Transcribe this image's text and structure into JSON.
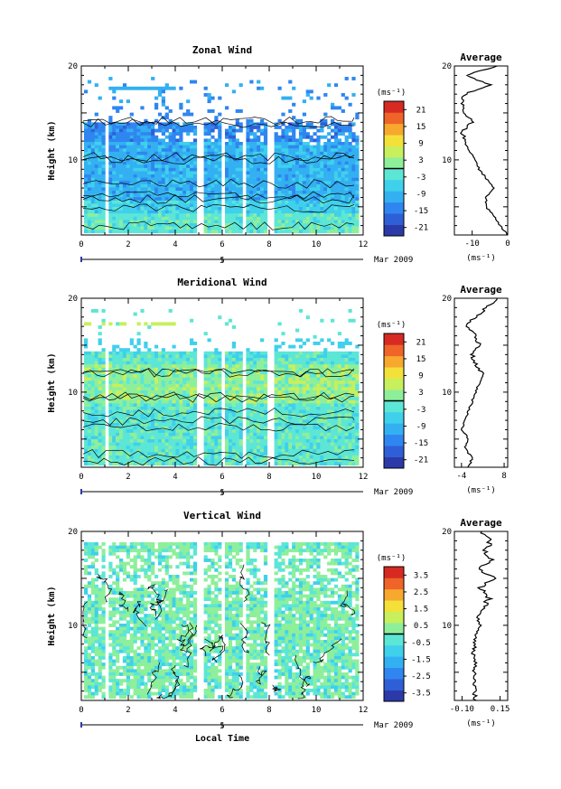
{
  "figure": {
    "xlabel": "Local Time",
    "date_label": "Mar 2009",
    "colormap": [
      "#2b3aa8",
      "#2f5fd6",
      "#2f86f0",
      "#33b0f2",
      "#3fd0ec",
      "#5ce6d6",
      "#8eef9a",
      "#c8ef5c",
      "#f3e13a",
      "#f7a82e",
      "#ef6428",
      "#d62a22"
    ]
  },
  "chart_data": [
    {
      "type": "heatmap",
      "title": "Zonal Wind",
      "xlabel": "",
      "ylabel": "Height (km)",
      "xlim": [
        0,
        12
      ],
      "ylim": [
        2,
        20
      ],
      "x_ticks": [
        "0",
        "2",
        "4",
        "6",
        "8",
        "10",
        "12"
      ],
      "y_ticks": [
        {
          "v": 10,
          "t": "10"
        },
        {
          "v": 20,
          "t": "20"
        }
      ],
      "day_marker": "5",
      "units": "(ms⁻¹)",
      "colorbar": {
        "min": -24,
        "max": 24,
        "ticks": [
          "21",
          "15",
          "9",
          "3",
          "-3",
          "-9",
          "-15",
          "-21"
        ]
      },
      "grid": false,
      "profile": {
        "title": "Average",
        "xlim": [
          -15,
          0
        ],
        "x_ticks": [
          {
            "v": -10,
            "t": "-10"
          },
          {
            "v": 0,
            "t": "0"
          }
        ],
        "units": "(ms⁻¹)",
        "height": [
          2,
          3,
          4,
          5,
          6,
          7,
          8,
          9,
          10,
          11,
          12,
          13,
          14,
          15,
          16,
          17,
          18,
          19,
          20
        ],
        "values": [
          0,
          -2,
          -4,
          -6,
          -6,
          -4,
          -6,
          -8,
          -9,
          -11,
          -12,
          -13,
          -10,
          -12,
          -13,
          -12,
          -5,
          -12,
          -3
        ]
      }
    },
    {
      "type": "heatmap",
      "title": "Meridional Wind",
      "xlabel": "",
      "ylabel": "Height (km)",
      "xlim": [
        0,
        12
      ],
      "ylim": [
        2,
        20
      ],
      "x_ticks": [
        "0",
        "2",
        "4",
        "6",
        "8",
        "10",
        "12"
      ],
      "y_ticks": [
        {
          "v": 10,
          "t": "10"
        },
        {
          "v": 20,
          "t": "20"
        }
      ],
      "day_marker": "5",
      "units": "(ms⁻¹)",
      "colorbar": {
        "min": -24,
        "max": 24,
        "ticks": [
          "21",
          "15",
          "9",
          "3",
          "-3",
          "-9",
          "-15",
          "-21"
        ]
      },
      "grid": false,
      "profile": {
        "title": "Average",
        "xlim": [
          -6,
          9
        ],
        "x_ticks": [
          {
            "v": -4,
            "t": "-4"
          },
          {
            "v": 8,
            "t": "8"
          }
        ],
        "units": "(ms⁻¹)",
        "height": [
          2,
          3,
          4,
          5,
          6,
          7,
          8,
          9,
          10,
          11,
          12,
          13,
          14,
          15,
          16,
          17,
          18,
          19,
          20
        ],
        "values": [
          -2,
          -1,
          -3,
          -2,
          -4,
          -3,
          -2,
          -1,
          0,
          1,
          2,
          0,
          -1,
          1,
          0,
          -3,
          0,
          3,
          6
        ]
      }
    },
    {
      "type": "heatmap",
      "title": "Vertical Wind",
      "xlabel": "Local Time",
      "ylabel": "Height (km)",
      "xlim": [
        0,
        12
      ],
      "ylim": [
        2,
        20
      ],
      "x_ticks": [
        "0",
        "2",
        "4",
        "6",
        "8",
        "10",
        "12"
      ],
      "y_ticks": [
        {
          "v": 10,
          "t": "10"
        },
        {
          "v": 20,
          "t": "20"
        }
      ],
      "day_marker": "5",
      "units": "(ms⁻¹)",
      "colorbar": {
        "min": -4,
        "max": 4,
        "ticks": [
          "3.5",
          "2.5",
          "1.5",
          "0.5",
          "-0.5",
          "-1.5",
          "-2.5",
          "-3.5"
        ]
      },
      "grid": false,
      "profile": {
        "title": "Average",
        "xlim": [
          -0.15,
          0.2
        ],
        "x_ticks": [
          {
            "v": -0.1,
            "t": "-0.10"
          },
          {
            "v": 0.15,
            "t": "0.15"
          }
        ],
        "units": "(ms⁻¹)",
        "height": [
          2,
          3,
          4,
          5,
          6,
          7,
          8,
          9,
          10,
          11,
          12,
          13,
          14,
          15,
          16,
          17,
          18,
          19,
          20
        ],
        "values": [
          -0.01,
          -0.02,
          -0.01,
          -0.02,
          -0.01,
          -0.03,
          -0.01,
          -0.02,
          0.02,
          0.0,
          0.05,
          0.08,
          0.03,
          0.12,
          0.02,
          0.1,
          0.05,
          0.08,
          0.03
        ]
      }
    }
  ]
}
